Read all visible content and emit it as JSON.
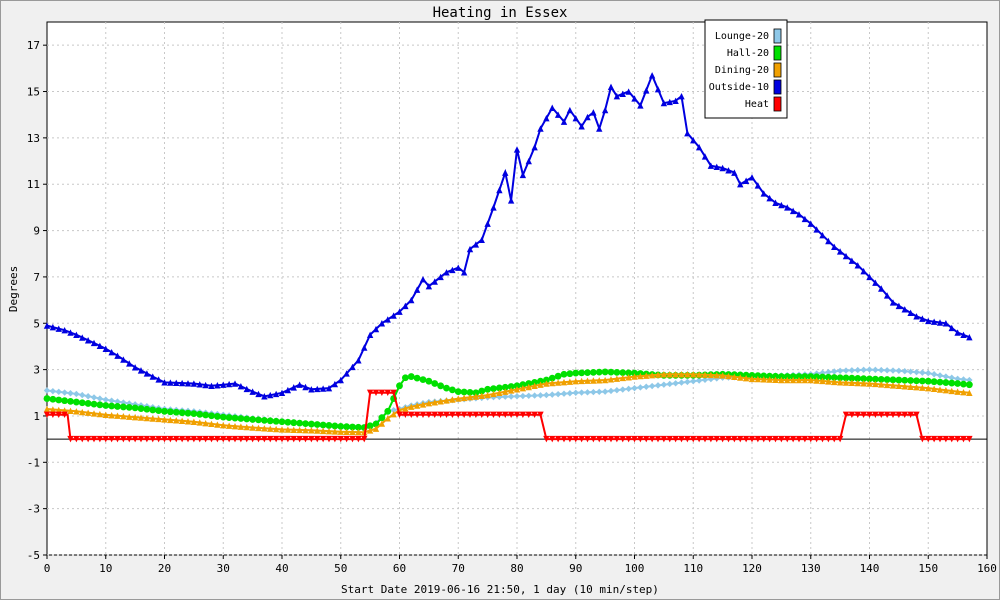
{
  "chart_data": {
    "type": "line",
    "title": "Heating in Essex",
    "xlabel": "Start Date 2019-06-16 21:50, 1 day (10 min/step)",
    "ylabel": "Degrees",
    "xlim": [
      0,
      160
    ],
    "ylim": [
      -5,
      18
    ],
    "xticks": [
      0,
      10,
      20,
      30,
      40,
      50,
      60,
      70,
      80,
      90,
      100,
      110,
      120,
      130,
      140,
      150,
      160
    ],
    "xtick_labels": [
      "0",
      "10",
      "20",
      "30",
      "40",
      "50",
      "60",
      "70",
      "80",
      "90",
      "100",
      "110",
      "120",
      "130",
      "140",
      "150",
      "160"
    ],
    "yticks": [
      -5,
      -3,
      -1,
      1,
      3,
      5,
      7,
      9,
      11,
      13,
      15,
      17
    ],
    "ytick_labels": [
      "-5",
      "-3",
      "-1",
      "1",
      "3",
      "5",
      "7",
      "9",
      "11",
      "13",
      "15",
      "17"
    ],
    "grid": true,
    "legend_position": "top-right",
    "series": [
      {
        "name": "Lounge-20",
        "color": "#8ec8e8",
        "marker": "diamond",
        "points": [
          [
            0,
            2.1
          ],
          [
            5,
            1.95
          ],
          [
            10,
            1.7
          ],
          [
            15,
            1.5
          ],
          [
            20,
            1.3
          ],
          [
            25,
            1.2
          ],
          [
            30,
            1.05
          ],
          [
            35,
            0.9
          ],
          [
            40,
            0.78
          ],
          [
            45,
            0.65
          ],
          [
            50,
            0.5
          ],
          [
            54,
            0.45
          ],
          [
            56,
            0.7
          ],
          [
            58,
            1.2
          ],
          [
            60,
            1.3
          ],
          [
            62,
            1.45
          ],
          [
            65,
            1.6
          ],
          [
            70,
            1.7
          ],
          [
            75,
            1.8
          ],
          [
            80,
            1.85
          ],
          [
            85,
            1.9
          ],
          [
            90,
            2.0
          ],
          [
            95,
            2.05
          ],
          [
            100,
            2.2
          ],
          [
            105,
            2.35
          ],
          [
            110,
            2.5
          ],
          [
            115,
            2.65
          ],
          [
            120,
            2.7
          ],
          [
            125,
            2.75
          ],
          [
            130,
            2.8
          ],
          [
            135,
            2.95
          ],
          [
            140,
            3.0
          ],
          [
            145,
            2.95
          ],
          [
            150,
            2.85
          ],
          [
            155,
            2.6
          ],
          [
            157,
            2.55
          ]
        ]
      },
      {
        "name": "Hall-20",
        "color": "#00e000",
        "marker": "circle",
        "points": [
          [
            0,
            1.75
          ],
          [
            5,
            1.6
          ],
          [
            10,
            1.45
          ],
          [
            15,
            1.35
          ],
          [
            20,
            1.2
          ],
          [
            25,
            1.1
          ],
          [
            30,
            0.95
          ],
          [
            35,
            0.85
          ],
          [
            40,
            0.75
          ],
          [
            45,
            0.65
          ],
          [
            50,
            0.55
          ],
          [
            54,
            0.5
          ],
          [
            56,
            0.65
          ],
          [
            58,
            1.2
          ],
          [
            60,
            2.3
          ],
          [
            61,
            2.65
          ],
          [
            62,
            2.7
          ],
          [
            65,
            2.5
          ],
          [
            68,
            2.2
          ],
          [
            70,
            2.05
          ],
          [
            73,
            2.0
          ],
          [
            75,
            2.15
          ],
          [
            80,
            2.3
          ],
          [
            85,
            2.55
          ],
          [
            88,
            2.8
          ],
          [
            90,
            2.85
          ],
          [
            95,
            2.9
          ],
          [
            100,
            2.85
          ],
          [
            105,
            2.75
          ],
          [
            110,
            2.75
          ],
          [
            115,
            2.8
          ],
          [
            120,
            2.75
          ],
          [
            125,
            2.7
          ],
          [
            130,
            2.7
          ],
          [
            135,
            2.65
          ],
          [
            140,
            2.6
          ],
          [
            145,
            2.55
          ],
          [
            150,
            2.5
          ],
          [
            155,
            2.4
          ],
          [
            157,
            2.35
          ]
        ]
      },
      {
        "name": "Dining-20",
        "color": "#f0a000",
        "marker": "triangle",
        "points": [
          [
            0,
            1.3
          ],
          [
            5,
            1.2
          ],
          [
            10,
            1.05
          ],
          [
            15,
            0.95
          ],
          [
            20,
            0.85
          ],
          [
            25,
            0.75
          ],
          [
            30,
            0.6
          ],
          [
            35,
            0.5
          ],
          [
            40,
            0.42
          ],
          [
            45,
            0.38
          ],
          [
            50,
            0.32
          ],
          [
            54,
            0.3
          ],
          [
            56,
            0.45
          ],
          [
            58,
            0.9
          ],
          [
            60,
            1.25
          ],
          [
            62,
            1.4
          ],
          [
            65,
            1.55
          ],
          [
            70,
            1.75
          ],
          [
            75,
            1.9
          ],
          [
            80,
            2.15
          ],
          [
            85,
            2.4
          ],
          [
            90,
            2.5
          ],
          [
            95,
            2.55
          ],
          [
            100,
            2.7
          ],
          [
            105,
            2.8
          ],
          [
            110,
            2.8
          ],
          [
            115,
            2.75
          ],
          [
            120,
            2.6
          ],
          [
            125,
            2.55
          ],
          [
            130,
            2.55
          ],
          [
            135,
            2.45
          ],
          [
            140,
            2.4
          ],
          [
            145,
            2.3
          ],
          [
            150,
            2.2
          ],
          [
            155,
            2.05
          ],
          [
            157,
            2.0
          ]
        ]
      },
      {
        "name": "Outside-10",
        "color": "#0000e0",
        "marker": "triangle",
        "points": [
          [
            0,
            4.9
          ],
          [
            3,
            4.7
          ],
          [
            5,
            4.5
          ],
          [
            8,
            4.15
          ],
          [
            10,
            3.9
          ],
          [
            12,
            3.6
          ],
          [
            15,
            3.1
          ],
          [
            18,
            2.7
          ],
          [
            20,
            2.45
          ],
          [
            25,
            2.4
          ],
          [
            28,
            2.3
          ],
          [
            30,
            2.35
          ],
          [
            32,
            2.4
          ],
          [
            35,
            2.05
          ],
          [
            37,
            1.85
          ],
          [
            40,
            2.0
          ],
          [
            43,
            2.35
          ],
          [
            45,
            2.15
          ],
          [
            48,
            2.2
          ],
          [
            50,
            2.55
          ],
          [
            53,
            3.4
          ],
          [
            55,
            4.5
          ],
          [
            57,
            5.0
          ],
          [
            60,
            5.5
          ],
          [
            62,
            6.0
          ],
          [
            64,
            6.9
          ],
          [
            65,
            6.6
          ],
          [
            68,
            7.2
          ],
          [
            70,
            7.4
          ],
          [
            71,
            7.2
          ],
          [
            72,
            8.2
          ],
          [
            74,
            8.6
          ],
          [
            76,
            10.0
          ],
          [
            78,
            11.5
          ],
          [
            79,
            10.3
          ],
          [
            80,
            12.5
          ],
          [
            81,
            11.4
          ],
          [
            82,
            12.0
          ],
          [
            83,
            12.6
          ],
          [
            84,
            13.4
          ],
          [
            86,
            14.3
          ],
          [
            88,
            13.7
          ],
          [
            89,
            14.2
          ],
          [
            91,
            13.5
          ],
          [
            92,
            13.9
          ],
          [
            93,
            14.1
          ],
          [
            94,
            13.4
          ],
          [
            95,
            14.2
          ],
          [
            96,
            15.2
          ],
          [
            97,
            14.8
          ],
          [
            99,
            15.0
          ],
          [
            101,
            14.4
          ],
          [
            103,
            15.7
          ],
          [
            105,
            14.5
          ],
          [
            107,
            14.6
          ],
          [
            108,
            14.8
          ],
          [
            109,
            13.2
          ],
          [
            111,
            12.6
          ],
          [
            113,
            11.8
          ],
          [
            115,
            11.7
          ],
          [
            117,
            11.5
          ],
          [
            118,
            11.0
          ],
          [
            120,
            11.3
          ],
          [
            122,
            10.6
          ],
          [
            124,
            10.2
          ],
          [
            126,
            10.0
          ],
          [
            128,
            9.7
          ],
          [
            130,
            9.3
          ],
          [
            132,
            8.8
          ],
          [
            134,
            8.3
          ],
          [
            136,
            7.9
          ],
          [
            138,
            7.5
          ],
          [
            140,
            7.0
          ],
          [
            142,
            6.5
          ],
          [
            144,
            5.9
          ],
          [
            146,
            5.6
          ],
          [
            148,
            5.3
          ],
          [
            150,
            5.1
          ],
          [
            153,
            5.0
          ],
          [
            155,
            4.6
          ],
          [
            157,
            4.4
          ]
        ]
      },
      {
        "name": "Heat",
        "color": "#ff0000",
        "marker": "triangle-down",
        "points": [
          [
            0,
            1.05
          ],
          [
            3.5,
            1.05
          ],
          [
            4,
            0.0
          ],
          [
            54,
            0.0
          ],
          [
            55,
            2.0
          ],
          [
            59,
            2.0
          ],
          [
            60,
            1.05
          ],
          [
            84,
            1.05
          ],
          [
            85,
            0.0
          ],
          [
            135,
            0.0
          ],
          [
            136,
            1.05
          ],
          [
            148,
            1.05
          ],
          [
            149,
            0.0
          ],
          [
            157,
            0.0
          ]
        ]
      }
    ]
  }
}
